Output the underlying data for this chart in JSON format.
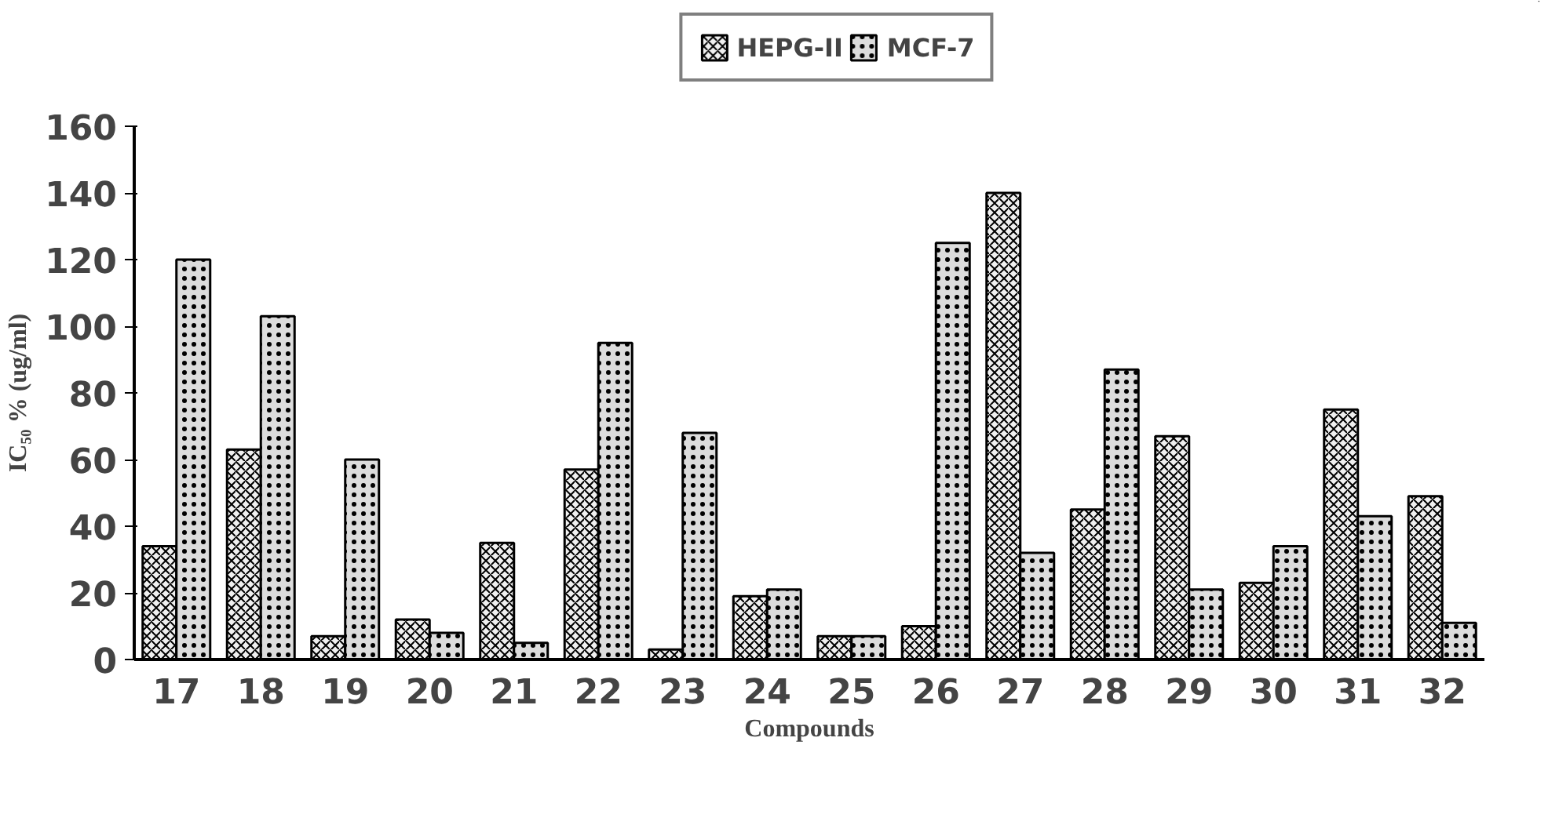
{
  "chart_data": {
    "type": "bar",
    "xlabel": "Compounds",
    "ylabel": "IC₅₀ % (ug/ml)",
    "categories": [
      "17",
      "18",
      "19",
      "20",
      "21",
      "22",
      "23",
      "24",
      "25",
      "26",
      "27",
      "28",
      "29",
      "30",
      "31",
      "32"
    ],
    "series": [
      {
        "name": "HEPG-II",
        "color": "#f0f0f0",
        "values": [
          34,
          63,
          7,
          12,
          35,
          57,
          3,
          19,
          7,
          10,
          140,
          45,
          67,
          23,
          75,
          49
        ]
      },
      {
        "name": "MCF-7",
        "color": "#dcdcdc",
        "values": [
          120,
          103,
          60,
          8,
          5,
          95,
          68,
          21,
          7,
          125,
          32,
          87,
          21,
          34,
          43,
          11
        ]
      }
    ],
    "ylim": [
      0,
      160
    ],
    "yticks": [
      0,
      20,
      40,
      60,
      80,
      100,
      120,
      140,
      160
    ],
    "grid": false,
    "legend": "top"
  }
}
